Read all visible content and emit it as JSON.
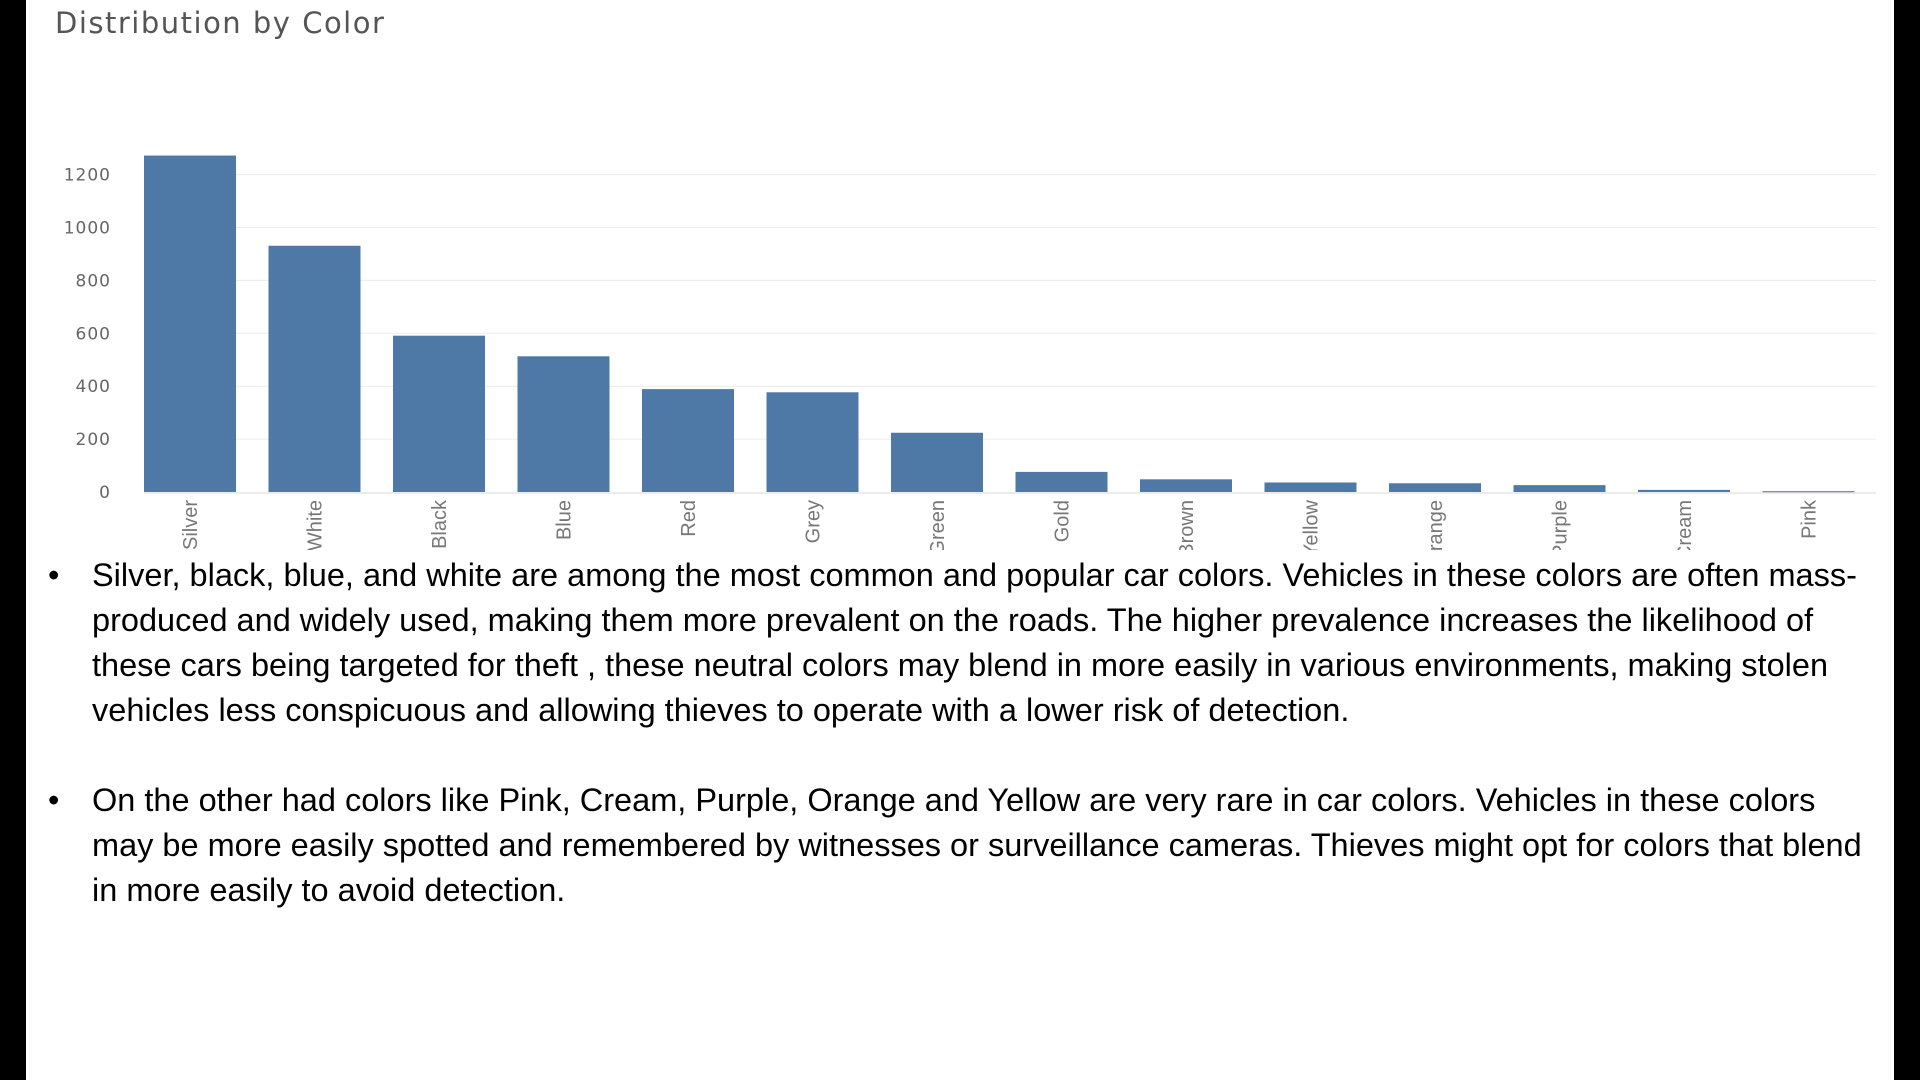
{
  "chart_data": {
    "type": "bar",
    "title": "Distribution by Color",
    "xlabel": "",
    "ylabel": "",
    "categories": [
      "Silver",
      "White",
      "Black",
      "Blue",
      "Red",
      "Grey",
      "Green",
      "Gold",
      "Brown",
      "Yellow",
      "Orange",
      "Purple",
      "Cream",
      "Pink"
    ],
    "values": [
      1272,
      931,
      591,
      513,
      389,
      377,
      224,
      76,
      48,
      36,
      33,
      26,
      8,
      3
    ],
    "ylim": [
      0,
      1300
    ],
    "yticks": [
      0,
      200,
      400,
      600,
      800,
      1000,
      1200
    ],
    "grid": true,
    "bar_color": "#4e79a7"
  },
  "bullets": [
    {
      "symbol": "•",
      "text": "Silver, black, blue, and white are among the most common and popular car colors. Vehicles in these colors are often mass-produced and widely used, making them more prevalent on the roads. The higher prevalence increases the likelihood of these cars being targeted for theft , these neutral colors  may blend in more easily in various environments, making stolen vehicles less conspicuous and allowing thieves to operate with a lower risk of detection."
    },
    {
      "symbol": "•",
      "text": "On the other had colors like Pink, Cream, Purple, Orange and Yellow are very rare in car colors. Vehicles in these colors may be more easily spotted and remembered by witnesses or surveillance cameras. Thieves might opt for colors that blend in more easily to avoid detection."
    }
  ]
}
